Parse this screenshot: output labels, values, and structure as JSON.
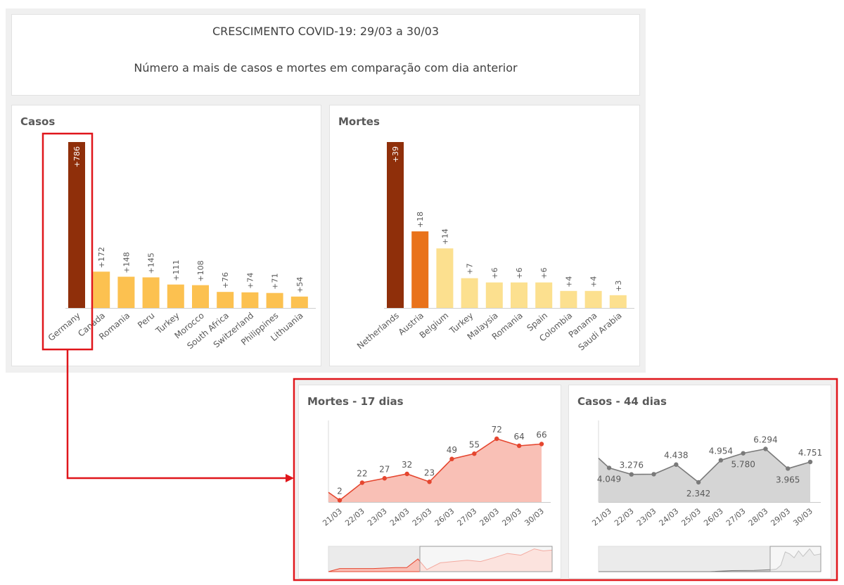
{
  "header": {
    "title": "CRESCIMENTO COVID-19: 29/03 a 30/03",
    "subtitle": "Número a mais de casos e mortes em comparação com dia anterior"
  },
  "colors": {
    "highlight_red": "#e0161b",
    "dark_bar": "#8f2f0a",
    "orange_bar": "#e9721a",
    "light_bar": "#fce08f",
    "yellow_bar": "#fcc150",
    "line_red": "#e5462f",
    "area_red": "#f9c0b6",
    "line_gray": "#7a7a7a",
    "area_gray": "#d5d5d5"
  },
  "chart_data": [
    {
      "id": "casos",
      "type": "bar",
      "title": "Casos",
      "categories": [
        "Germany",
        "Canada",
        "Romania",
        "Peru",
        "Turkey",
        "Morocco",
        "South Africa",
        "Switzerland",
        "Philippines",
        "Lithuania"
      ],
      "values": [
        786,
        172,
        148,
        145,
        111,
        108,
        76,
        74,
        71,
        54
      ],
      "labels": [
        "+786",
        "+172",
        "+148",
        "+145",
        "+111",
        "+108",
        "+76",
        "+74",
        "+71",
        "+54"
      ],
      "ylim": [
        0,
        786
      ],
      "highlighted": "Germany"
    },
    {
      "id": "mortes",
      "type": "bar",
      "title": "Mortes",
      "categories": [
        "Netherlands",
        "Austria",
        "Belgium",
        "Turkey",
        "Malaysia",
        "Romania",
        "Spain",
        "Colombia",
        "Panama",
        "Saudi Arabia"
      ],
      "values": [
        39,
        18,
        14,
        7,
        6,
        6,
        6,
        4,
        4,
        3
      ],
      "labels": [
        "+39",
        "+18",
        "+14",
        "+7",
        "+6",
        "+6",
        "+6",
        "+4",
        "+4",
        "+3"
      ],
      "ylim": [
        0,
        39
      ]
    },
    {
      "id": "mortes-17",
      "type": "area",
      "title": "Mortes - 17 dias",
      "x": [
        "21/03",
        "22/03",
        "23/03",
        "24/03",
        "25/03",
        "26/03",
        "27/03",
        "28/03",
        "29/03",
        "30/03"
      ],
      "values": [
        2,
        22,
        27,
        32,
        23,
        49,
        55,
        72,
        64,
        66
      ],
      "labels": [
        "2",
        "22",
        "27",
        "32",
        "23",
        "49",
        "55",
        "72",
        "64",
        "66"
      ],
      "ylim": [
        0,
        80
      ]
    },
    {
      "id": "casos-44",
      "type": "area",
      "title": "Casos - 44 dias",
      "x": [
        "21/03",
        "22/03",
        "23/03",
        "24/03",
        "25/03",
        "26/03",
        "27/03",
        "28/03",
        "29/03",
        "30/03"
      ],
      "values": [
        4049,
        3276,
        3300,
        4438,
        2342,
        4954,
        5780,
        6294,
        3965,
        4751
      ],
      "labels": [
        "4.049",
        "3.276",
        "",
        "4.438",
        "2.342",
        "4.954",
        "5.780",
        "6.294",
        "3.965",
        "4.751"
      ],
      "ylim": [
        0,
        10000
      ]
    }
  ]
}
